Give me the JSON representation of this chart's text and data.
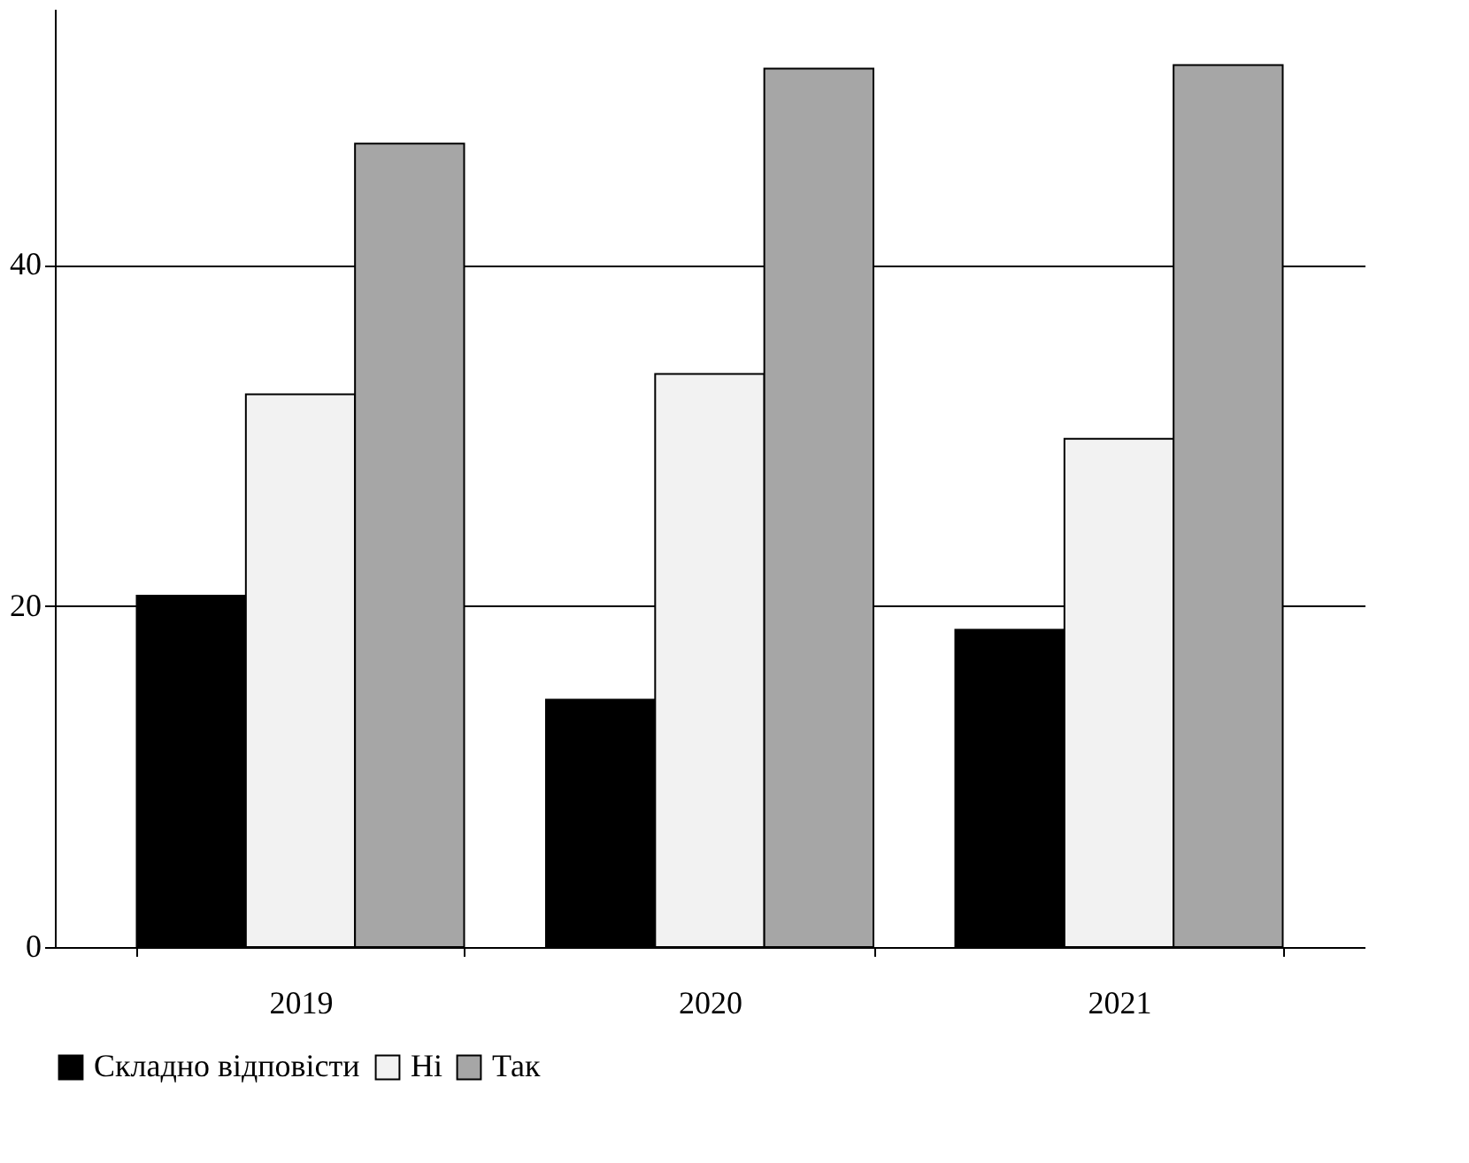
{
  "chart_data": {
    "type": "bar",
    "categories": [
      "2019",
      "2020",
      "2021"
    ],
    "series": [
      {
        "name": "Складно відповісти",
        "color": "#000000",
        "values": [
          20.6,
          14.5,
          18.6
        ]
      },
      {
        "name": "Ні",
        "color": "#f2f2f2",
        "values": [
          32.4,
          33.6,
          29.8
        ]
      },
      {
        "name": "Так",
        "color": "#a6a6a6",
        "values": [
          47.1,
          51.5,
          51.7
        ]
      }
    ],
    "ylim": [
      0,
      55
    ],
    "yticks": [
      0,
      20,
      40
    ],
    "grid": "y",
    "legend": "bottom"
  }
}
